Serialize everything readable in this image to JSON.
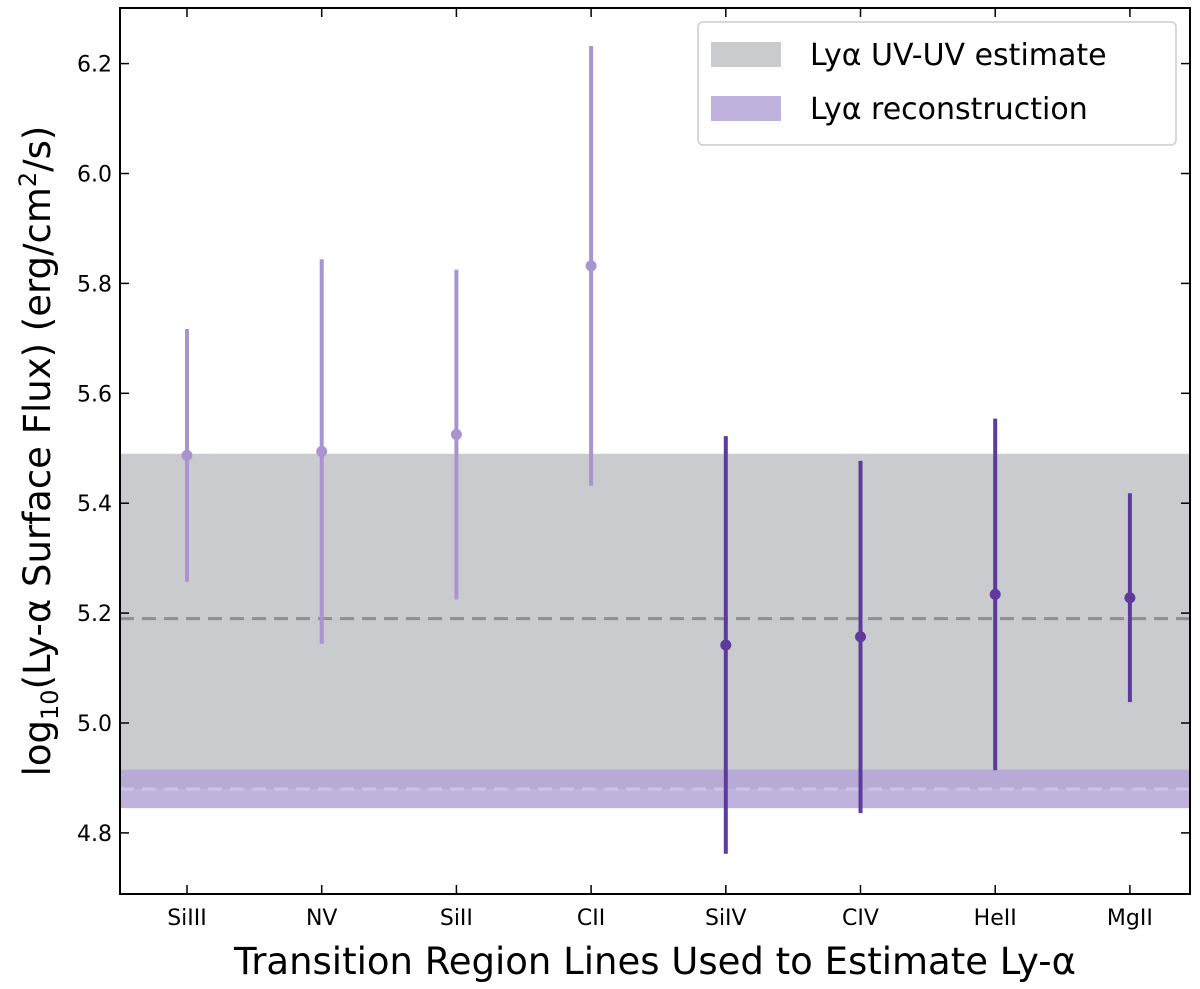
{
  "chart_data": {
    "type": "scatter",
    "categories": [
      "SiIII",
      "NV",
      "SiII",
      "CII",
      "SiIV",
      "CIV",
      "HeII",
      "MgII"
    ],
    "xlabel": "Transition Region Lines Used to Estimate Ly-α",
    "ylabel": "log10(Ly-α Surface Flux) (erg/cm2/s)",
    "ylabel_parts": {
      "pre": "log",
      "sub": "10",
      "mid": "(Ly-α Surface Flux) (erg/cm",
      "sup": "2",
      "post": "/s)"
    },
    "ylim": [
      4.69,
      6.32
    ],
    "yticks": [
      "4.8",
      "5.0",
      "5.2",
      "5.4",
      "5.6",
      "5.8",
      "6.0",
      "6.2"
    ],
    "grid": false,
    "legend_position": "top-right",
    "points": [
      {
        "category": "SiIII",
        "value": 5.487,
        "low": 5.257,
        "high": 5.717,
        "group": "light"
      },
      {
        "category": "NV",
        "value": 5.494,
        "low": 5.144,
        "high": 5.844,
        "group": "light"
      },
      {
        "category": "SiII",
        "value": 5.525,
        "low": 5.225,
        "high": 5.825,
        "group": "light"
      },
      {
        "category": "CII",
        "value": 5.832,
        "low": 5.432,
        "high": 6.232,
        "group": "light"
      },
      {
        "category": "SiIV",
        "value": 5.142,
        "low": 4.762,
        "high": 5.522,
        "group": "dark"
      },
      {
        "category": "CIV",
        "value": 5.157,
        "low": 4.836,
        "high": 5.477,
        "group": "dark"
      },
      {
        "category": "HeII",
        "value": 5.234,
        "low": 4.914,
        "high": 5.554,
        "group": "dark"
      },
      {
        "category": "MgII",
        "value": 5.228,
        "low": 5.038,
        "high": 5.418,
        "group": "dark"
      }
    ],
    "bands": [
      {
        "name": "Lyα UV-UV estimate",
        "center": 5.19,
        "low": 4.88,
        "high": 5.49,
        "color": "#c9cbcf",
        "line_color": "#8f8f8f"
      },
      {
        "name": "Lyα reconstruction",
        "center": 4.88,
        "low": 4.845,
        "high": 4.915,
        "color": "#b4a5d6",
        "line_color": "#cdc3e6"
      }
    ],
    "colors": {
      "light": "#a994cf",
      "dark": "#5d3a9b"
    },
    "legend": [
      {
        "label": "Lyα UV-UV estimate",
        "color": "#c9cbcf"
      },
      {
        "label": "Lyα reconstruction",
        "color": "#c0b2de"
      }
    ]
  }
}
